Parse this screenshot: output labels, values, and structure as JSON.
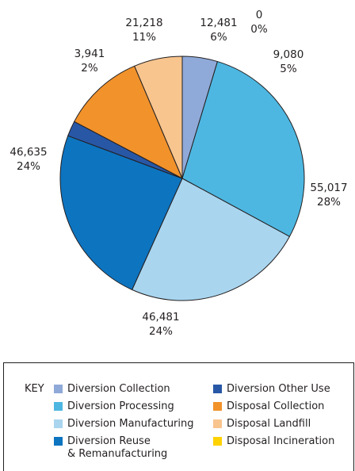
{
  "chart_data": {
    "type": "pie",
    "start_angle_deg": 0,
    "direction": "clockwise",
    "slices": [
      {
        "label": "Disposal Incineration",
        "value": 0,
        "value_text": "0",
        "percent_text": "0%",
        "color": "#ffd200"
      },
      {
        "label": "Diversion Collection",
        "value": 9080,
        "value_text": "9,080",
        "percent_text": "5%",
        "color": "#8fa9d8"
      },
      {
        "label": "Diversion Processing",
        "value": 55017,
        "value_text": "55,017",
        "percent_text": "28%",
        "color": "#4db7e1"
      },
      {
        "label": "Diversion Manufacturing",
        "value": 46481,
        "value_text": "46,481",
        "percent_text": "24%",
        "color": "#a9d5ef"
      },
      {
        "label": "Diversion Reuse & Remanufacturing",
        "value": 46635,
        "value_text": "46,635",
        "percent_text": "24%",
        "color": "#0d74c0"
      },
      {
        "label": "Diversion Other Use",
        "value": 3941,
        "value_text": "3,941",
        "percent_text": "2%",
        "color": "#2857a6"
      },
      {
        "label": "Disposal Collection",
        "value": 21218,
        "value_text": "21,218",
        "percent_text": "11%",
        "color": "#f1922b"
      },
      {
        "label": "Disposal Landfill",
        "value": 12481,
        "value_text": "12,481",
        "percent_text": "6%",
        "color": "#f8c58f"
      }
    ]
  },
  "legend": {
    "key_label": "KEY",
    "items": [
      {
        "label": "Diversion Collection",
        "color": "#8fa9d8"
      },
      {
        "label": "Diversion Other Use",
        "color": "#2857a6"
      },
      {
        "label": "Diversion Processing",
        "color": "#4db7e1"
      },
      {
        "label": "Disposal Collection",
        "color": "#f1922b"
      },
      {
        "label": "Diversion Manufacturing",
        "color": "#a9d5ef"
      },
      {
        "label": "Disposal Landfill",
        "color": "#f8c58f"
      },
      {
        "label": "Diversion Reuse\n& Remanufacturing",
        "color": "#0d74c0"
      },
      {
        "label": "Disposal Incineration",
        "color": "#ffd200"
      }
    ]
  }
}
